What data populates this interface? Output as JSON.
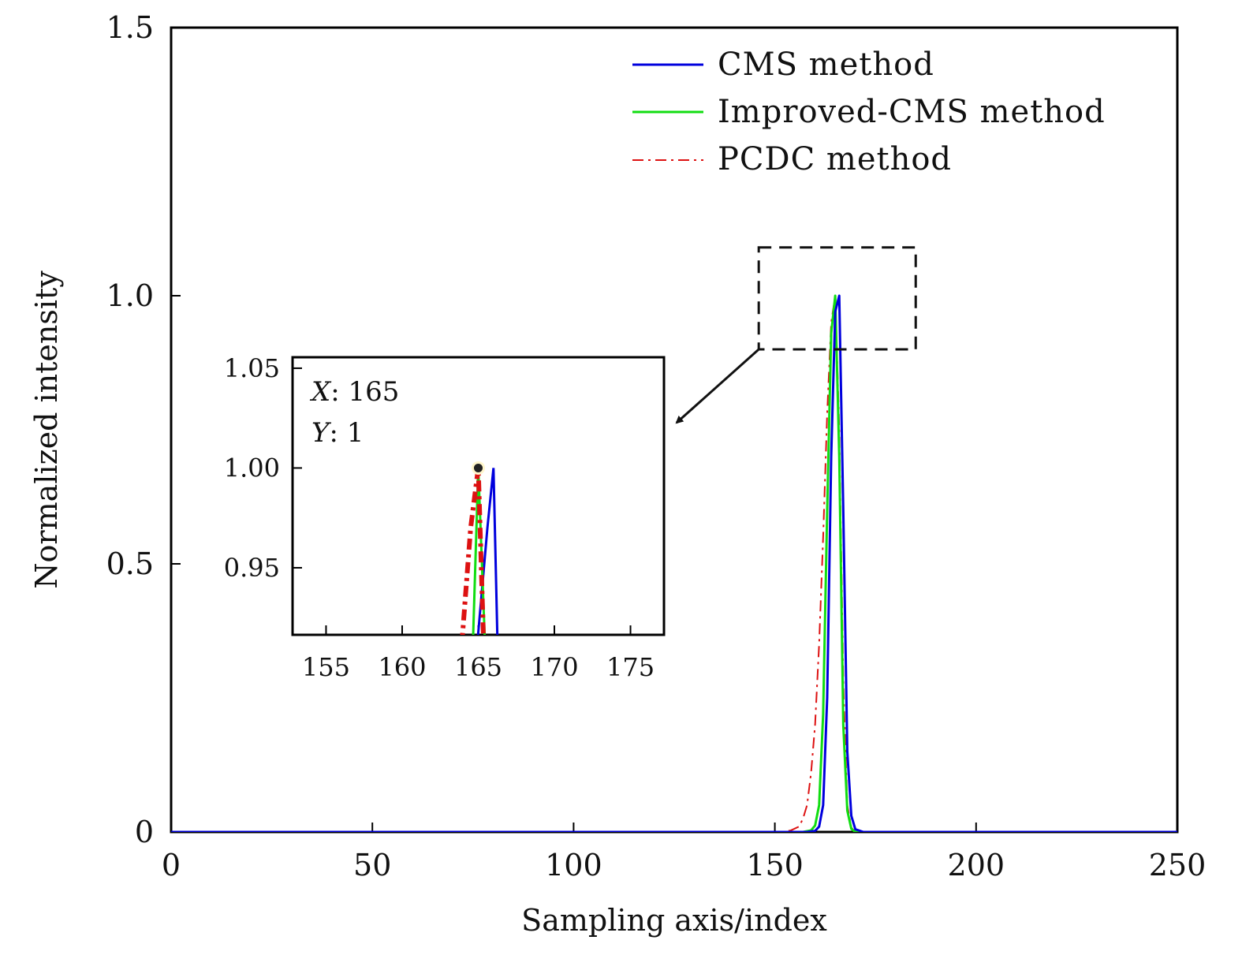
{
  "chart_data": {
    "type": "line",
    "title": "",
    "xlabel": "Sampling axis/index",
    "ylabel": "Normalized intensity",
    "xlim": [
      0,
      250
    ],
    "ylim": [
      0,
      1.5
    ],
    "xticks": [
      0,
      50,
      100,
      150,
      200,
      250
    ],
    "xtick_labels": [
      "0",
      "50",
      "100",
      "150",
      "200",
      "250"
    ],
    "yticks": [
      0,
      0.5,
      1.0,
      1.5
    ],
    "ytick_labels": [
      "0",
      "0.5",
      "1.0",
      "1.5"
    ],
    "grid": false,
    "legend_position": "top-right",
    "series": [
      {
        "name": "CMS method",
        "color": "#0000dd",
        "style": "solid",
        "x": [
          0,
          158,
          160,
          161,
          162,
          163,
          164,
          165,
          166,
          167,
          168,
          169,
          170,
          172,
          250
        ],
        "y": [
          0,
          0,
          0.002,
          0.01,
          0.05,
          0.25,
          0.7,
          0.97,
          1.0,
          0.6,
          0.15,
          0.03,
          0.005,
          0,
          0
        ]
      },
      {
        "name": "Improved-CMS method",
        "color": "#11dd11",
        "style": "solid",
        "x": [
          0,
          157,
          159,
          160,
          161,
          162,
          163,
          164,
          165,
          166,
          167,
          168,
          169,
          170,
          250
        ],
        "y": [
          0,
          0,
          0.003,
          0.012,
          0.05,
          0.22,
          0.6,
          0.93,
          1.0,
          0.7,
          0.2,
          0.04,
          0.006,
          0,
          0
        ]
      },
      {
        "name": "PCDC method",
        "color": "#dd1111",
        "style": "dashdot",
        "x": [
          0,
          152,
          154,
          156,
          157,
          158,
          159,
          160,
          161,
          162,
          163,
          164,
          165,
          166,
          167,
          168,
          169,
          170,
          250
        ],
        "y": [
          0,
          0,
          0.003,
          0.01,
          0.025,
          0.05,
          0.11,
          0.2,
          0.35,
          0.55,
          0.78,
          0.95,
          1.0,
          0.75,
          0.28,
          0.05,
          0.008,
          0,
          0
        ]
      }
    ],
    "inset": {
      "xlim": [
        152.8,
        177.2
      ],
      "ylim": [
        0.9164,
        1.0555
      ],
      "xticks": [
        155,
        160,
        165,
        170,
        175
      ],
      "xtick_labels": [
        "155",
        "160",
        "165",
        "170",
        "175"
      ],
      "yticks": [
        0.95,
        1.0,
        1.05
      ],
      "ytick_labels": [
        "0.95",
        "1.00",
        "1.05"
      ],
      "zoom_region": {
        "x": [
          146,
          185
        ],
        "y": [
          0.9,
          1.09
        ]
      },
      "datatip": {
        "x": 165,
        "y": 1,
        "x_label": "X",
        "y_label": "Y",
        "x_value": ": 165",
        "y_value": ": 1"
      },
      "series": [
        {
          "name": "CMS method",
          "x": [
            164.8,
            165.6,
            166.0,
            166.3
          ],
          "y": [
            0.9,
            0.97,
            1.0,
            0.9
          ]
        },
        {
          "name": "Improved-CMS method",
          "x": [
            164.6,
            165.0,
            165.5
          ],
          "y": [
            0.9,
            1.0,
            0.9
          ]
        },
        {
          "name": "PCDC method",
          "x": [
            163.8,
            164.5,
            165.0,
            165.4
          ],
          "y": [
            0.9,
            0.97,
            1.0,
            0.9
          ]
        }
      ]
    }
  }
}
